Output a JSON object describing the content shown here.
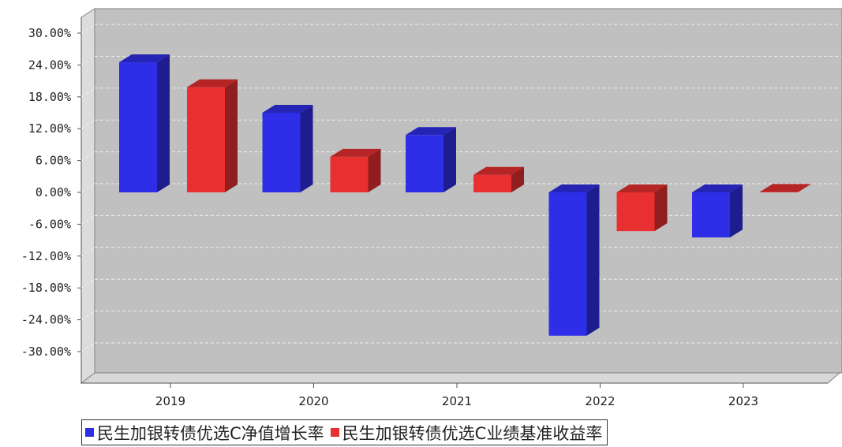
{
  "chart_data": {
    "type": "bar",
    "categories": [
      "2019",
      "2020",
      "2021",
      "2022",
      "2023"
    ],
    "series": [
      {
        "name": "民生加银转债优选C净值增长率",
        "color": "#2e2ee8",
        "values": [
          24.5,
          15.0,
          10.8,
          -27.0,
          -8.5
        ]
      },
      {
        "name": "民生加银转债优选C业绩基准收益率",
        "color": "#e83030",
        "values": [
          19.8,
          6.7,
          3.3,
          -7.3,
          0.1
        ]
      }
    ],
    "y_ticks": [
      "30.00%",
      "24.00%",
      "18.00%",
      "12.00%",
      "6.00%",
      "0.00%",
      "-6.00%",
      "-12.00%",
      "-18.00%",
      "-24.00%",
      "-30.00%"
    ],
    "ylim": [
      -35,
      32
    ],
    "grid": true,
    "legend_position": "bottom"
  }
}
